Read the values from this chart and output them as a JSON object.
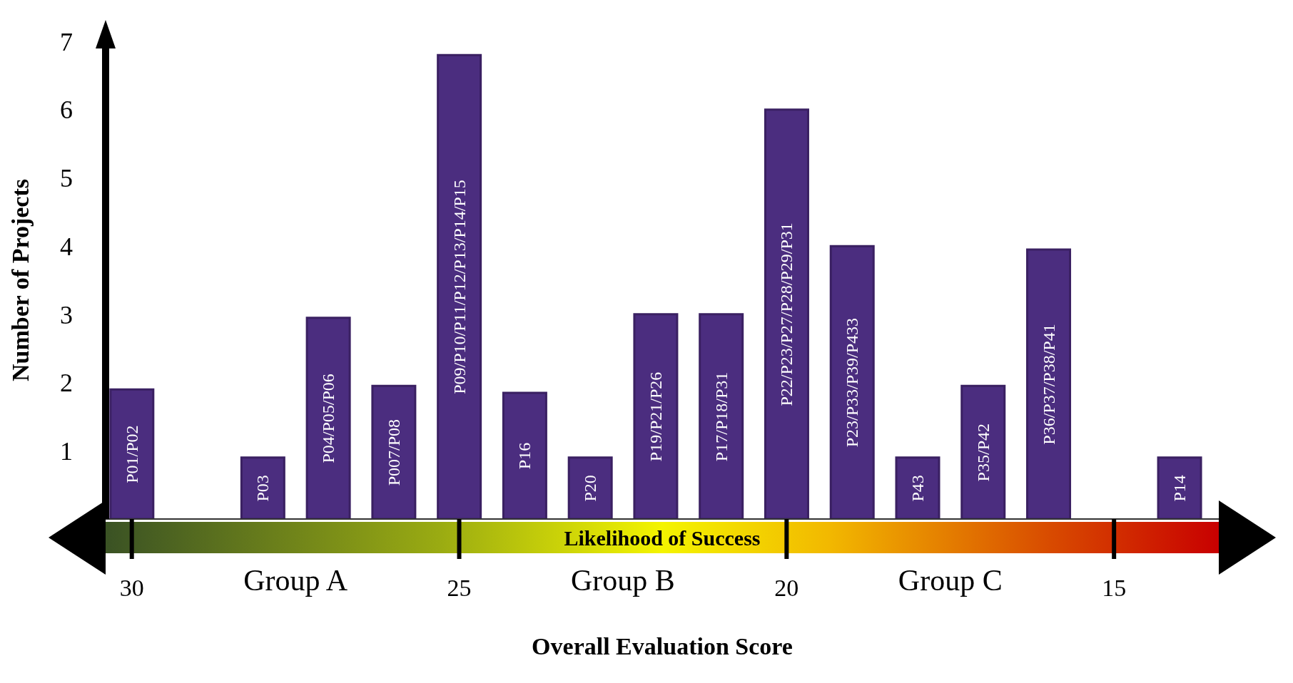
{
  "chart_data": {
    "type": "bar",
    "xlabel": "Overall Evaluation Score",
    "ylabel": "Number of Projects",
    "x": [
      30,
      28,
      27,
      26,
      25,
      24,
      23,
      22,
      21,
      20,
      19,
      18,
      17,
      16,
      14
    ],
    "values": [
      1.9,
      0.9,
      2.95,
      1.95,
      6.8,
      1.85,
      0.9,
      3,
      3,
      6,
      4,
      0.9,
      1.95,
      3.95,
      0.9
    ],
    "value_labels": [
      "P01/P02",
      "P03",
      "P04/P05/P06",
      "P007/P08",
      "P09/P10/P11/P12/P13/P14/P15",
      "P16",
      "P20",
      "P19/P21/P26",
      "P17/P18/P31",
      "P22/P23/P27/P28/P29/P31",
      "P23/P33/P39/P433",
      "P43",
      "P35/P42",
      "P36/P37/P38/P41",
      "P14"
    ],
    "color": "#4b2d7f",
    "xlim": [
      30.4,
      13.4
    ],
    "xticks": [
      30,
      25,
      20,
      15
    ],
    "ylim": [
      0,
      7
    ],
    "yticks": [
      1,
      2,
      3,
      4,
      5,
      6,
      7
    ],
    "annotations": [
      "Likelihood of Success",
      "Group A",
      "Group B",
      "Group C"
    ]
  }
}
